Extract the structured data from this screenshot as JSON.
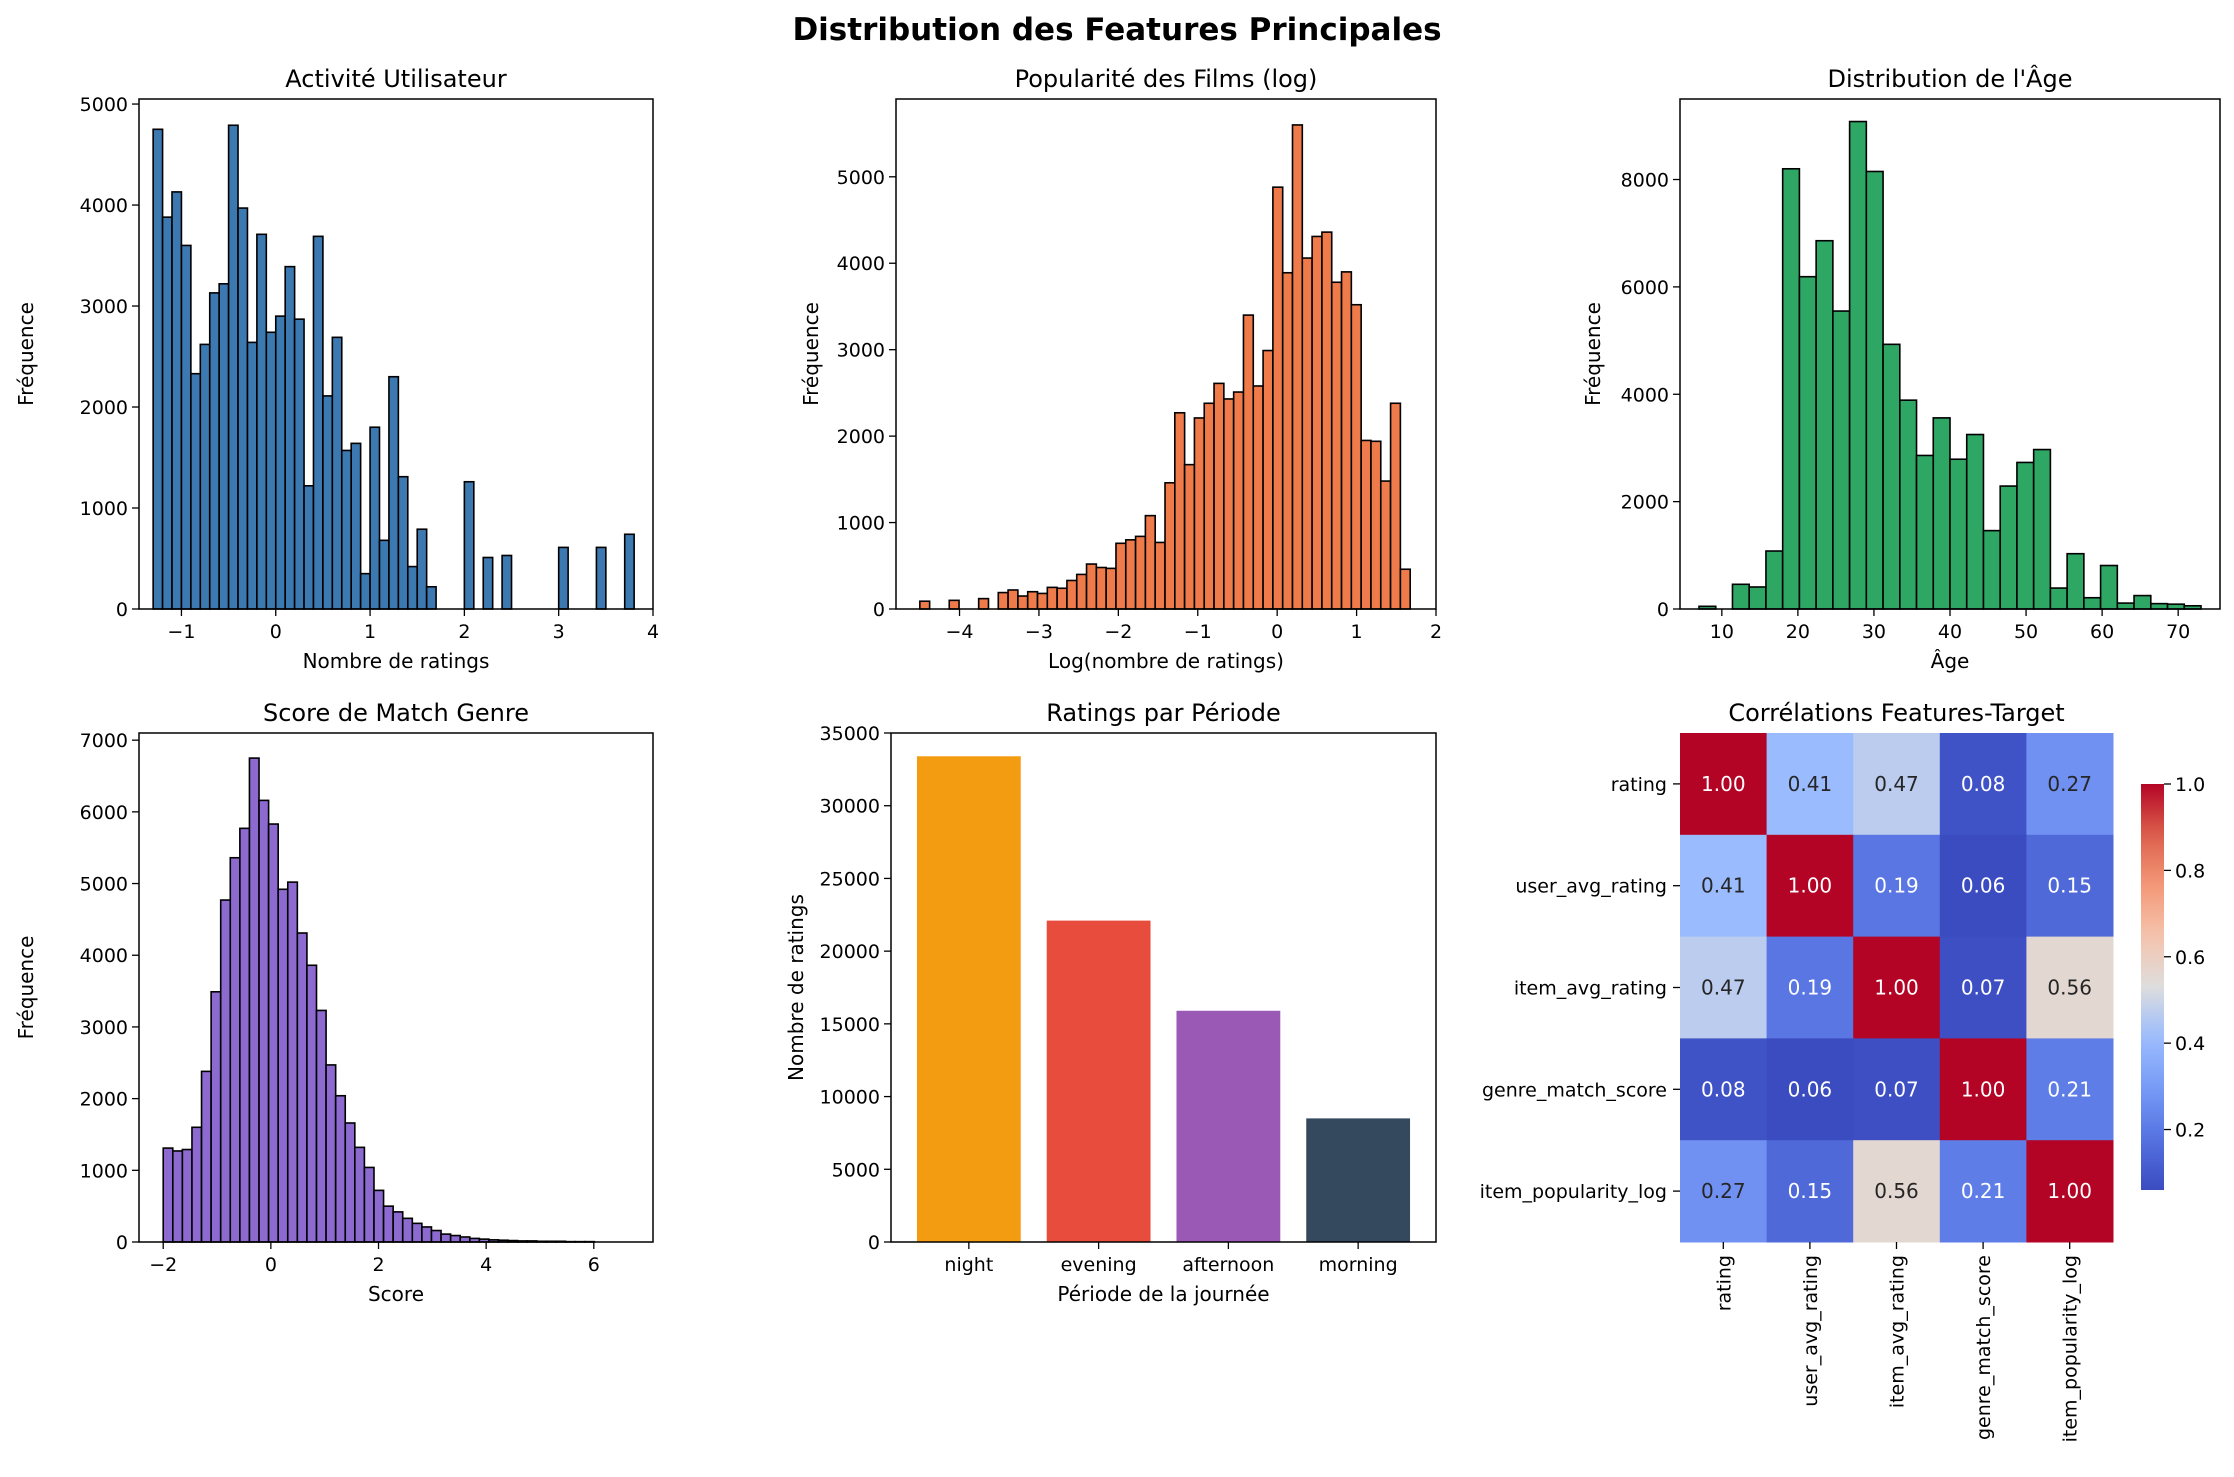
{
  "figure": {
    "title": "Distribution des Features Principales"
  },
  "chart_data": [
    {
      "id": "activity",
      "type": "bar",
      "title": "Activité Utilisateur",
      "xlabel": "Nombre de ratings",
      "ylabel": "Fréquence",
      "color": "#3d79b1",
      "xlim": [
        -1.45,
        4.0
      ],
      "ylim": [
        0,
        5050
      ],
      "xticks": [
        -1,
        0,
        1,
        2,
        3,
        4
      ],
      "yticks": [
        0,
        1000,
        2000,
        3000,
        4000,
        5000
      ],
      "bin_start": -1.3,
      "bin_width": 0.1,
      "values": [
        4750,
        3880,
        4130,
        3600,
        2330,
        2620,
        3130,
        3220,
        4790,
        3970,
        2640,
        3710,
        2740,
        2900,
        3390,
        2870,
        1220,
        3690,
        2110,
        2690,
        1570,
        1640,
        350,
        1800,
        680,
        2300,
        1310,
        420,
        790,
        220,
        0,
        0,
        0,
        1260,
        0,
        510,
        0,
        530,
        0,
        0,
        0,
        0,
        0,
        610,
        0,
        0,
        0,
        610,
        0,
        0,
        740,
        0
      ]
    },
    {
      "id": "popularity",
      "type": "bar",
      "title": "Popularité des Films (log)",
      "xlabel": "Log(nombre de ratings)",
      "ylabel": "Fréquence",
      "color": "#f07b4a",
      "xlim": [
        -4.8,
        2.0
      ],
      "ylim": [
        0,
        5900
      ],
      "xticks": [
        -4,
        -3,
        -2,
        -1,
        0,
        1,
        2
      ],
      "yticks": [
        0,
        1000,
        2000,
        3000,
        4000,
        5000
      ],
      "bin_start": -4.5,
      "bin_width": 0.1235,
      "values": [
        90,
        0,
        0,
        100,
        0,
        0,
        120,
        0,
        190,
        220,
        150,
        200,
        180,
        250,
        240,
        330,
        400,
        520,
        480,
        470,
        760,
        800,
        840,
        1080,
        770,
        1460,
        2270,
        1670,
        2210,
        2380,
        2610,
        2430,
        2510,
        3400,
        2580,
        2990,
        4880,
        3890,
        5600,
        4060,
        4310,
        4360,
        3780,
        3900,
        3520,
        1950,
        1940,
        1480,
        2380,
        460
      ]
    },
    {
      "id": "age",
      "type": "bar",
      "title": "Distribution de l'Âge",
      "xlabel": "Âge",
      "ylabel": "Fréquence",
      "color": "#2fa764",
      "xlim": [
        4.5,
        75.5
      ],
      "ylim": [
        0,
        9500
      ],
      "xticks": [
        10,
        20,
        30,
        40,
        50,
        60,
        70
      ],
      "yticks": [
        0,
        2000,
        4000,
        6000,
        8000
      ],
      "bin_start": 7.0,
      "bin_width": 2.2,
      "values": [
        50,
        0,
        460,
        410,
        1080,
        8200,
        6190,
        6860,
        5550,
        9080,
        8150,
        4930,
        3890,
        2860,
        3560,
        2790,
        3250,
        1460,
        2290,
        2730,
        2970,
        390,
        1030,
        210,
        810,
        110,
        250,
        100,
        90,
        60
      ]
    },
    {
      "id": "genre",
      "type": "bar",
      "title": "Score de Match Genre",
      "xlabel": "Score",
      "ylabel": "Fréquence",
      "color": "#8c6acf",
      "xlim": [
        -2.45,
        7.1
      ],
      "ylim": [
        0,
        7100
      ],
      "xticks": [
        -2,
        0,
        2,
        4,
        6
      ],
      "yticks": [
        0,
        1000,
        2000,
        3000,
        4000,
        5000,
        6000,
        7000
      ],
      "bin_start": -2.0,
      "bin_width": 0.178,
      "values": [
        1310,
        1270,
        1290,
        1600,
        2380,
        3490,
        4770,
        5360,
        5770,
        6750,
        6160,
        5830,
        4920,
        5020,
        4310,
        3860,
        3230,
        2470,
        2040,
        1660,
        1320,
        1040,
        720,
        500,
        420,
        330,
        260,
        210,
        160,
        110,
        90,
        70,
        50,
        40,
        30,
        25,
        20,
        15,
        15,
        10,
        10,
        10,
        5,
        5,
        5,
        0,
        0,
        0,
        0,
        0
      ]
    },
    {
      "id": "periode",
      "type": "bar",
      "title": "Ratings par Période",
      "xlabel": "Période de la journée",
      "ylabel": "Nombre de ratings",
      "ylim": [
        0,
        35000
      ],
      "yticks": [
        0,
        5000,
        10000,
        15000,
        20000,
        25000,
        30000,
        35000
      ],
      "categories": [
        "night",
        "evening",
        "afternoon",
        "morning"
      ],
      "values": [
        33400,
        22100,
        15900,
        8500
      ],
      "colors": [
        "#f39c12",
        "#e74c3c",
        "#9b59b6",
        "#34495e"
      ]
    },
    {
      "id": "corr",
      "type": "heatmap",
      "title": "Corrélations Features-Target",
      "labels": [
        "rating",
        "user_avg_rating",
        "item_avg_rating",
        "genre_match_score",
        "item_popularity_log"
      ],
      "matrix": [
        [
          1.0,
          0.41,
          0.47,
          0.08,
          0.27
        ],
        [
          0.41,
          1.0,
          0.19,
          0.06,
          0.15
        ],
        [
          0.47,
          0.19,
          1.0,
          0.07,
          0.56
        ],
        [
          0.08,
          0.06,
          0.07,
          1.0,
          0.21
        ],
        [
          0.27,
          0.15,
          0.56,
          0.21,
          1.0
        ]
      ],
      "colorbar": {
        "ticks": [
          0.2,
          0.4,
          0.6,
          0.8,
          1.0
        ],
        "range": [
          0.06,
          1.0
        ],
        "colormap": "coolwarm"
      }
    }
  ]
}
